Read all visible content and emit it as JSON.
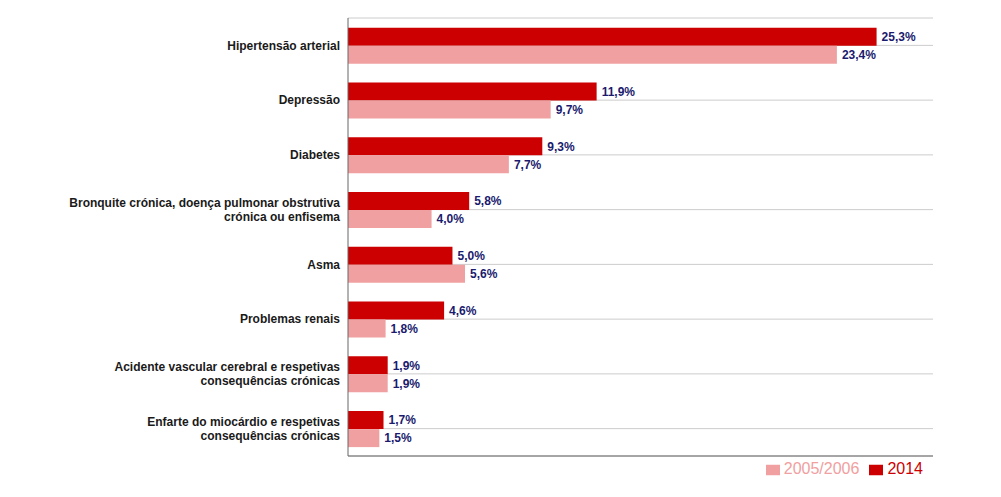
{
  "chart_data": {
    "type": "bar",
    "orientation": "horizontal",
    "categories": [
      "Enfarte do miocárdio e respetivas\nconsequências crónicas",
      "Acidente vascular cerebral e respetivas\nconsequências crónicas",
      "Problemas renais",
      "Asma",
      "Bronquite crónica, doença pulmonar obstrutiva\ncrónica ou enfisema",
      "Diabetes",
      "Depressão",
      "Hipertensão arterial"
    ],
    "series": [
      {
        "name": "2014",
        "color": "#cc0000",
        "values": [
          1.7,
          1.9,
          4.6,
          5.0,
          5.8,
          9.3,
          11.9,
          25.3
        ],
        "value_labels": [
          "1,7%",
          "1,9%",
          "4,6%",
          "5,0%",
          "5,8%",
          "9,3%",
          "11,9%",
          "25,3%"
        ]
      },
      {
        "name": "2005/2006",
        "color": "#f0a0a0",
        "values": [
          1.5,
          1.9,
          1.8,
          5.6,
          4.0,
          7.7,
          9.7,
          23.4
        ],
        "value_labels": [
          "1,5%",
          "1,9%",
          "1,8%",
          "5,6%",
          "4,0%",
          "7,7%",
          "9,7%",
          "23,4%"
        ]
      }
    ],
    "xlim": [
      0,
      28
    ],
    "grid": true,
    "legend": "lower right",
    "data_labels": true,
    "tick_labels": "y"
  }
}
